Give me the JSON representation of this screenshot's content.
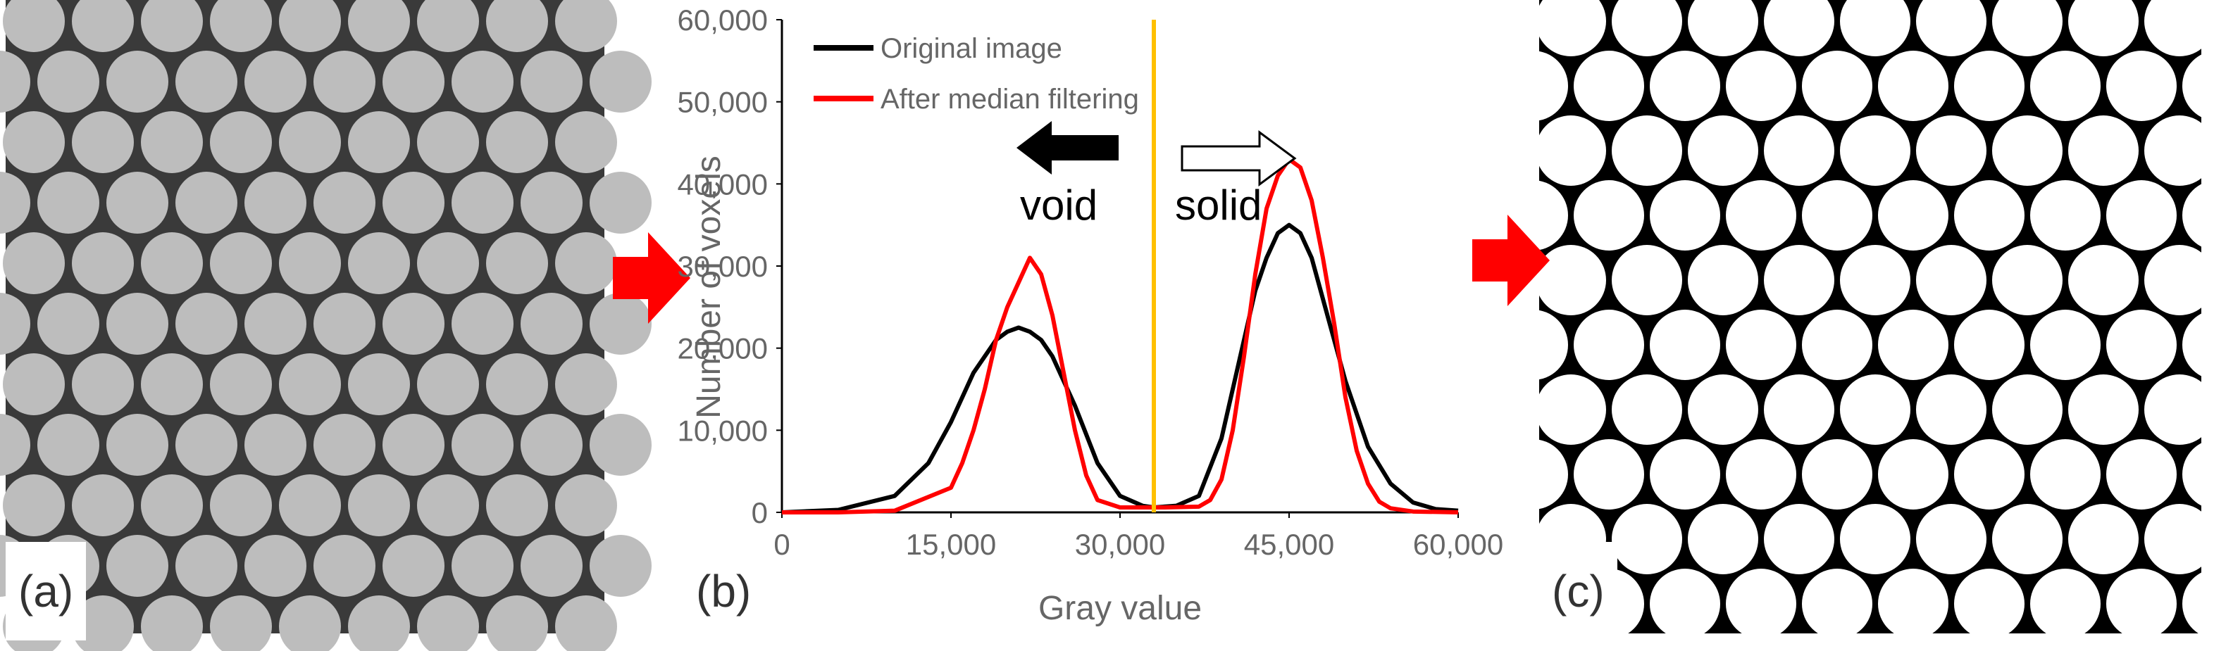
{
  "panels": {
    "a_label": "(a)",
    "b_label": "(b)",
    "c_label": "(c)"
  },
  "colors": {
    "arrow": "#ff0000",
    "original_series": "#000000",
    "filtered_series": "#ff0000",
    "threshold_line": "#ffc000"
  },
  "chart_data": {
    "type": "line",
    "title": "",
    "xlabel": "Gray value",
    "ylabel": "Number of voxels",
    "xlim": [
      0,
      60000
    ],
    "ylim": [
      0,
      60000
    ],
    "xticks": [
      "0",
      "15,000",
      "30,000",
      "45,000",
      "60,000"
    ],
    "yticks": [
      "0",
      "10,000",
      "20,000",
      "30,000",
      "40,000",
      "50,000",
      "60,000"
    ],
    "legend_position": "top-left",
    "threshold": 33000,
    "annotations": {
      "void": "void",
      "solid": "solid"
    },
    "series": [
      {
        "name": "Original image",
        "color": "#000000",
        "x": [
          0,
          5000,
          10000,
          13000,
          15000,
          17000,
          19000,
          20000,
          21000,
          22000,
          23000,
          24000,
          26000,
          28000,
          30000,
          32000,
          33000,
          35000,
          37000,
          39000,
          40000,
          41000,
          42000,
          43000,
          44000,
          45000,
          46000,
          47000,
          48000,
          50000,
          52000,
          54000,
          56000,
          58000,
          60000
        ],
        "y": [
          0,
          300,
          2000,
          6000,
          11000,
          17000,
          21000,
          22000,
          22500,
          22000,
          21000,
          19000,
          13000,
          6000,
          2000,
          800,
          600,
          800,
          2000,
          9000,
          15000,
          21000,
          27000,
          31000,
          34000,
          35000,
          34000,
          31000,
          26000,
          16000,
          8000,
          3500,
          1200,
          400,
          200
        ]
      },
      {
        "name": "After median filtering",
        "color": "#ff0000",
        "x": [
          0,
          5000,
          10000,
          15000,
          16000,
          17000,
          18000,
          19000,
          20000,
          21000,
          22000,
          23000,
          24000,
          25000,
          26000,
          27000,
          28000,
          30000,
          32000,
          34000,
          37000,
          38000,
          39000,
          40000,
          41000,
          42000,
          43000,
          44000,
          45000,
          46000,
          47000,
          48000,
          49000,
          50000,
          51000,
          52000,
          53000,
          54000,
          56000,
          60000
        ],
        "y": [
          0,
          0,
          200,
          3000,
          6000,
          10000,
          15000,
          21000,
          25000,
          28000,
          31000,
          29000,
          24000,
          17000,
          10000,
          4500,
          1500,
          600,
          600,
          600,
          700,
          1500,
          4000,
          10000,
          19000,
          29000,
          37000,
          41000,
          43000,
          42000,
          38000,
          31000,
          23000,
          14000,
          7500,
          3500,
          1300,
          500,
          100,
          0
        ]
      }
    ]
  }
}
